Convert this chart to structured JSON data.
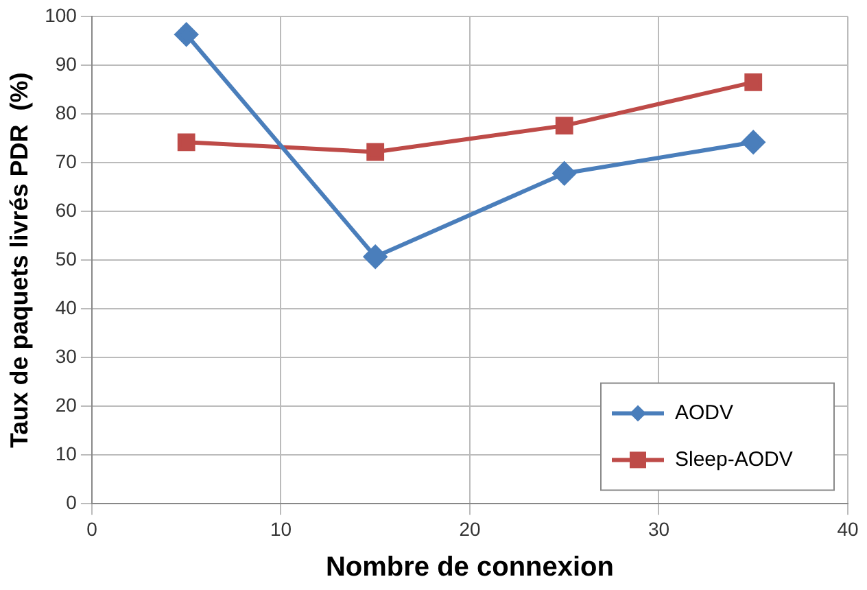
{
  "chart_data": {
    "type": "line",
    "xlabel": "Nombre de connexion",
    "ylabel": "Taux de paquets livrés PDR  (%)",
    "x": [
      5,
      15,
      25,
      35
    ],
    "series": [
      {
        "name": "AODV",
        "color": "#4a7ebb",
        "values": [
          96.3,
          50.7,
          67.8,
          74.2
        ],
        "marker": "diamond"
      },
      {
        "name": "Sleep-AODV",
        "color": "#be4b48",
        "values": [
          74.2,
          72.2,
          77.6,
          86.5
        ],
        "marker": "square"
      }
    ],
    "xlim": [
      0,
      40
    ],
    "xticks": [
      0,
      10,
      20,
      30,
      40
    ],
    "ylim": [
      0,
      100
    ],
    "yticks": [
      0,
      10,
      20,
      30,
      40,
      50,
      60,
      70,
      80,
      90,
      100
    ],
    "grid": true,
    "legend": "bottom right",
    "line_style": "solid"
  }
}
